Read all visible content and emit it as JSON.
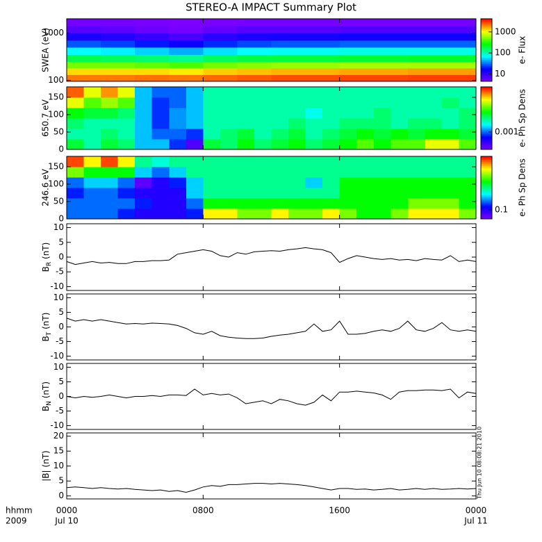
{
  "title": "STEREO-A IMPACT Summary Plot",
  "timestamp": "Thu Jun 10 08:08:21 2010",
  "colormap": [
    "#7f00ff",
    "#0000ff",
    "#00ffff",
    "#00ff00",
    "#ffff00",
    "#ff0000"
  ],
  "x_axis": {
    "xlim": [
      0,
      24
    ],
    "xticks": [
      {
        "value": 0,
        "label": "0000"
      },
      {
        "value": 8,
        "label": "0800"
      },
      {
        "value": 16,
        "label": "1600"
      },
      {
        "value": 24,
        "label": "0000"
      }
    ],
    "date_labels": [
      {
        "value": 0,
        "label": "Jul 10"
      },
      {
        "value": 24,
        "label": "Jul 11"
      }
    ],
    "row_labels": [
      "hhmm",
      "2009"
    ]
  },
  "chart_data": [
    {
      "type": "heatmap",
      "ylabel": "SWEA (eV)",
      "ylog": true,
      "ylim": [
        95,
        2000
      ],
      "yticks": [
        100,
        1000
      ],
      "x_bins": [
        0,
        2,
        4,
        6,
        8,
        10,
        12,
        14,
        16,
        18,
        20,
        22,
        24
      ],
      "y_bins": [
        95,
        130,
        180,
        250,
        350,
        500,
        700,
        1000,
        1400,
        2000
      ],
      "z": [
        [
          2200,
          2200,
          2300,
          2200,
          2400,
          2600,
          2800,
          2800,
          2900,
          2900,
          3000,
          3000
        ],
        [
          1300,
          1300,
          1300,
          1200,
          1400,
          1500,
          1600,
          1600,
          1700,
          1700,
          1800,
          1800
        ],
        [
          500,
          500,
          450,
          400,
          500,
          550,
          600,
          600,
          650,
          650,
          650,
          650
        ],
        [
          180,
          170,
          150,
          130,
          170,
          190,
          200,
          200,
          210,
          210,
          220,
          220
        ],
        [
          70,
          65,
          55,
          45,
          60,
          70,
          75,
          75,
          80,
          80,
          80,
          80
        ],
        [
          28,
          25,
          20,
          16,
          22,
          26,
          28,
          28,
          30,
          30,
          30,
          30
        ],
        [
          13,
          12,
          10,
          8,
          11,
          13,
          14,
          14,
          15,
          15,
          15,
          15
        ],
        [
          7,
          6.5,
          5.5,
          5,
          6,
          7,
          7,
          7,
          7.5,
          7.5,
          7.5,
          7.5
        ],
        [
          5,
          5,
          4.8,
          4.6,
          4.8,
          5,
          5,
          5,
          5,
          5,
          5,
          5
        ]
      ],
      "colorbar": {
        "label": "e- Flux",
        "log": true,
        "lim": [
          4.5,
          4200
        ],
        "ticks": [
          10,
          100,
          1000
        ]
      }
    },
    {
      "type": "heatmap",
      "ylabel": "650.7 eV",
      "ylim": [
        0,
        180
      ],
      "yticks": [
        0,
        50,
        100,
        150
      ],
      "x_bins": [
        0,
        1,
        2,
        3,
        4,
        5,
        6,
        7,
        8,
        9,
        10,
        11,
        12,
        13,
        14,
        15,
        16,
        17,
        18,
        19,
        20,
        21,
        22,
        23,
        24
      ],
      "y_bins": [
        0,
        30,
        60,
        90,
        120,
        150,
        180
      ],
      "z": [
        [
          0.002,
          0.0016,
          0.002,
          0.0018,
          0.0012,
          0.0012,
          0.0009,
          0.0006,
          0.002,
          0.0018,
          0.0022,
          0.0018,
          0.002,
          0.0022,
          0.0018,
          0.002,
          0.0022,
          0.0026,
          0.0022,
          0.0026,
          0.0026,
          0.0035,
          0.0035,
          0.0026
        ],
        [
          0.0016,
          0.0016,
          0.0018,
          0.0016,
          0.0012,
          0.001,
          0.001,
          0.0009,
          0.0016,
          0.0018,
          0.002,
          0.0016,
          0.0018,
          0.002,
          0.0016,
          0.0018,
          0.002,
          0.0022,
          0.002,
          0.0022,
          0.002,
          0.0022,
          0.0022,
          0.002
        ],
        [
          0.0018,
          0.0016,
          0.0016,
          0.0016,
          0.0012,
          0.0009,
          0.0011,
          0.0012,
          0.0016,
          0.0016,
          0.0016,
          0.0016,
          0.0016,
          0.0018,
          0.0016,
          0.0016,
          0.0018,
          0.0018,
          0.0018,
          0.0016,
          0.0018,
          0.0018,
          0.0016,
          0.0018
        ],
        [
          0.0022,
          0.002,
          0.002,
          0.0018,
          0.0012,
          0.0009,
          0.0011,
          0.0012,
          0.0016,
          0.0016,
          0.0016,
          0.0016,
          0.0016,
          0.0016,
          0.0014,
          0.0016,
          0.0016,
          0.0016,
          0.0018,
          0.0016,
          0.0016,
          0.0016,
          0.0016,
          0.0018
        ],
        [
          0.0035,
          0.0026,
          0.003,
          0.0026,
          0.0012,
          0.0009,
          0.001,
          0.0012,
          0.0016,
          0.0016,
          0.0016,
          0.0016,
          0.0016,
          0.0016,
          0.0016,
          0.0016,
          0.0016,
          0.0016,
          0.0016,
          0.0016,
          0.0016,
          0.0016,
          0.0018,
          0.0016
        ],
        [
          0.005,
          0.0035,
          0.0045,
          0.0035,
          0.0012,
          0.001,
          0.001,
          0.0012,
          0.0016,
          0.0016,
          0.0016,
          0.0016,
          0.0016,
          0.0016,
          0.0016,
          0.0016,
          0.0016,
          0.0016,
          0.0016,
          0.0016,
          0.0016,
          0.0016,
          0.0016,
          0.0016
        ]
      ],
      "colorbar": {
        "label": "e- Ph Sp Dens",
        "log": true,
        "lim": [
          0.0005,
          0.006
        ],
        "ticks": [
          0.001
        ]
      }
    },
    {
      "type": "heatmap",
      "ylabel": "246.6 eV",
      "ylim": [
        0,
        180
      ],
      "yticks": [
        0,
        50,
        100,
        150
      ],
      "x_bins": [
        0,
        1,
        2,
        3,
        4,
        5,
        6,
        7,
        8,
        9,
        10,
        11,
        12,
        13,
        14,
        15,
        16,
        17,
        18,
        19,
        20,
        21,
        22,
        23,
        24
      ],
      "y_bins": [
        0,
        30,
        60,
        90,
        120,
        150,
        180
      ],
      "z": [
        [
          0.14,
          0.14,
          0.14,
          0.12,
          0.1,
          0.1,
          0.1,
          0.12,
          0.5,
          0.5,
          0.38,
          0.38,
          0.5,
          0.38,
          0.38,
          0.5,
          0.38,
          0.3,
          0.3,
          0.38,
          0.5,
          0.5,
          0.5,
          0.38
        ],
        [
          0.14,
          0.14,
          0.14,
          0.14,
          0.12,
          0.1,
          0.1,
          0.14,
          0.3,
          0.3,
          0.3,
          0.3,
          0.3,
          0.3,
          0.3,
          0.3,
          0.3,
          0.3,
          0.3,
          0.3,
          0.38,
          0.38,
          0.38,
          0.3
        ],
        [
          0.12,
          0.14,
          0.14,
          0.12,
          0.1,
          0.1,
          0.1,
          0.17,
          0.23,
          0.23,
          0.23,
          0.23,
          0.23,
          0.23,
          0.23,
          0.23,
          0.3,
          0.3,
          0.3,
          0.3,
          0.3,
          0.3,
          0.3,
          0.3
        ],
        [
          0.14,
          0.17,
          0.17,
          0.14,
          0.08,
          0.1,
          0.12,
          0.17,
          0.23,
          0.23,
          0.23,
          0.23,
          0.23,
          0.23,
          0.17,
          0.23,
          0.3,
          0.3,
          0.3,
          0.3,
          0.3,
          0.3,
          0.3,
          0.3
        ],
        [
          0.38,
          0.3,
          0.3,
          0.3,
          0.17,
          0.14,
          0.17,
          0.23,
          0.23,
          0.23,
          0.23,
          0.23,
          0.23,
          0.23,
          0.23,
          0.23,
          0.23,
          0.23,
          0.23,
          0.23,
          0.23,
          0.23,
          0.23,
          0.23
        ],
        [
          0.7,
          0.5,
          0.7,
          0.5,
          0.23,
          0.2,
          0.23,
          0.23,
          0.23,
          0.23,
          0.23,
          0.23,
          0.23,
          0.23,
          0.23,
          0.23,
          0.23,
          0.23,
          0.23,
          0.23,
          0.23,
          0.23,
          0.23,
          0.23
        ]
      ],
      "colorbar": {
        "label": "e- Ph Sp Dens",
        "log": true,
        "lim": [
          0.07,
          0.8
        ],
        "ticks": [
          0.1
        ]
      }
    },
    {
      "type": "line",
      "ylabel": {
        "symbol": "B",
        "subscript": "R",
        "unit": "(nT)"
      },
      "ylim": [
        -11.3,
        11.3
      ],
      "yticks": [
        -10,
        -5,
        0,
        5,
        10
      ],
      "color": "#000000",
      "x": [
        0,
        0.5,
        1,
        1.5,
        2,
        2.5,
        3,
        3.5,
        4,
        4.5,
        5,
        5.5,
        6,
        6.5,
        7,
        7.5,
        8,
        8.5,
        9,
        9.5,
        10,
        10.5,
        11,
        11.5,
        12,
        12.5,
        13,
        13.5,
        14,
        14.5,
        15,
        15.5,
        16,
        16.5,
        17,
        17.5,
        18,
        18.5,
        19,
        19.5,
        20,
        20.5,
        21,
        21.5,
        22,
        22.5,
        23,
        23.5,
        24
      ],
      "values": [
        -1.5,
        -2.5,
        -2,
        -1.5,
        -2,
        -1.8,
        -2.2,
        -2.2,
        -1.5,
        -1.5,
        -1.2,
        -1.2,
        -1,
        1,
        1.5,
        2,
        2.5,
        2,
        0.5,
        0,
        1.5,
        1,
        1.8,
        2,
        2.2,
        2,
        2.5,
        2.8,
        3.2,
        2.8,
        2.5,
        1.5,
        -1.8,
        -0.5,
        0.5,
        0,
        -0.5,
        -0.8,
        -0.5,
        -1,
        -0.8,
        -1.2,
        -0.5,
        -0.8,
        -1,
        0.5,
        -1.5,
        -1,
        -1.5
      ]
    },
    {
      "type": "line",
      "ylabel": {
        "symbol": "B",
        "subscript": "T",
        "unit": "(nT)"
      },
      "ylim": [
        -11.3,
        11.3
      ],
      "yticks": [
        -10,
        -5,
        0,
        5,
        10
      ],
      "color": "#000000",
      "x": [
        0,
        0.5,
        1,
        1.5,
        2,
        2.5,
        3,
        3.5,
        4,
        4.5,
        5,
        5.5,
        6,
        6.5,
        7,
        7.5,
        8,
        8.5,
        9,
        9.5,
        10,
        10.5,
        11,
        11.5,
        12,
        12.5,
        13,
        13.5,
        14,
        14.5,
        15,
        15.5,
        16,
        16.5,
        17,
        17.5,
        18,
        18.5,
        19,
        19.5,
        20,
        20.5,
        21,
        21.5,
        22,
        22.5,
        23,
        23.5,
        24
      ],
      "values": [
        3,
        2,
        2.5,
        2,
        2.5,
        2,
        1.5,
        1,
        1.2,
        1,
        1.3,
        1.2,
        1,
        0.5,
        -0.5,
        -2,
        -2.5,
        -1.5,
        -3,
        -3.5,
        -3.8,
        -4,
        -4,
        -3.8,
        -3.2,
        -2.8,
        -2.5,
        -2,
        -1.5,
        1,
        -1.5,
        -1,
        2,
        -2.5,
        -2.5,
        -2.2,
        -1.5,
        -1,
        -1.5,
        -0.5,
        2,
        -1,
        -1.5,
        -0.5,
        1.5,
        -1,
        -1.5,
        -1,
        -1.5
      ]
    },
    {
      "type": "line",
      "ylabel": {
        "symbol": "B",
        "subscript": "N",
        "unit": "(nT)"
      },
      "ylim": [
        -11.3,
        11.3
      ],
      "yticks": [
        -10,
        -5,
        0,
        5,
        10
      ],
      "color": "#000000",
      "x": [
        0,
        0.5,
        1,
        1.5,
        2,
        2.5,
        3,
        3.5,
        4,
        4.5,
        5,
        5.5,
        6,
        6.5,
        7,
        7.5,
        8,
        8.5,
        9,
        9.5,
        10,
        10.5,
        11,
        11.5,
        12,
        12.5,
        13,
        13.5,
        14,
        14.5,
        15,
        15.5,
        16,
        16.5,
        17,
        17.5,
        18,
        18.5,
        19,
        19.5,
        20,
        20.5,
        21,
        21.5,
        22,
        22.5,
        23,
        23.5,
        24
      ],
      "values": [
        0,
        -0.5,
        0,
        -0.3,
        0,
        0.5,
        0,
        -0.5,
        0,
        0,
        0.3,
        0,
        0.5,
        0.5,
        0.3,
        2.5,
        0.5,
        1,
        0.5,
        0.8,
        -0.5,
        -2.5,
        -2,
        -1.5,
        -2.5,
        -1,
        -1.5,
        -2.5,
        -3,
        -2,
        0.5,
        -1.5,
        1.5,
        1.5,
        1.8,
        1.5,
        1.2,
        0.5,
        -1,
        1.5,
        2,
        2,
        2.2,
        2.2,
        2,
        2.5,
        -0.5,
        1.5,
        1
      ]
    },
    {
      "type": "line",
      "ylabel": {
        "symbol": "|B|",
        "unit": "(nT)"
      },
      "ylim": [
        -1,
        21.1
      ],
      "yticks": [
        0,
        5,
        10,
        15,
        20
      ],
      "color": "#000000",
      "x": [
        0,
        0.5,
        1,
        1.5,
        2,
        2.5,
        3,
        3.5,
        4,
        4.5,
        5,
        5.5,
        6,
        6.5,
        7,
        7.5,
        8,
        8.5,
        9,
        9.5,
        10,
        10.5,
        11,
        11.5,
        12,
        12.5,
        13,
        13.5,
        14,
        14.5,
        15,
        15.5,
        16,
        16.5,
        17,
        17.5,
        18,
        18.5,
        19,
        19.5,
        20,
        20.5,
        21,
        21.5,
        22,
        22.5,
        23,
        23.5,
        24
      ],
      "values": [
        2.8,
        3,
        2.8,
        2.5,
        2.8,
        2.5,
        2.3,
        2.5,
        2.2,
        2,
        1.8,
        2,
        1.5,
        1.8,
        1.2,
        2,
        3,
        3.5,
        3.2,
        3.8,
        3.8,
        4,
        4.2,
        4.2,
        4,
        4.2,
        4,
        3.8,
        3.5,
        3,
        2.5,
        2,
        2.5,
        2.5,
        2.2,
        2.3,
        2,
        2.2,
        2.5,
        2,
        2.2,
        2.5,
        2.2,
        2.5,
        2.2,
        2.3,
        2.5,
        2.3,
        2.5
      ]
    }
  ]
}
